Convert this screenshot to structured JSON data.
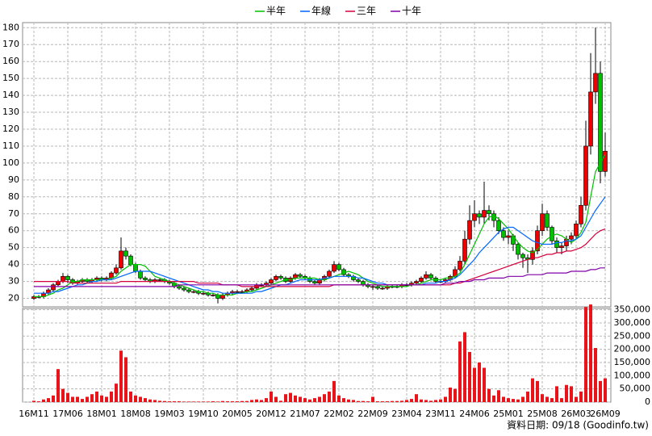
{
  "chart_data": {
    "type": "candlestick",
    "categories": [
      "16M11",
      null,
      null,
      null,
      null,
      null,
      null,
      "17M06",
      null,
      null,
      null,
      null,
      null,
      null,
      "18M01",
      null,
      null,
      null,
      null,
      null,
      null,
      "18M08",
      null,
      null,
      null,
      null,
      null,
      null,
      "19M03",
      null,
      null,
      null,
      null,
      null,
      null,
      "19M10",
      null,
      null,
      null,
      null,
      null,
      null,
      "20M05",
      null,
      null,
      null,
      null,
      null,
      null,
      "20M12",
      null,
      null,
      null,
      null,
      null,
      null,
      "21M07",
      null,
      null,
      null,
      null,
      null,
      null,
      "22M02",
      null,
      null,
      null,
      null,
      null,
      null,
      "22M09",
      null,
      null,
      null,
      null,
      null,
      null,
      "23M04",
      null,
      null,
      null,
      null,
      null,
      null,
      "23M11",
      null,
      null,
      null,
      null,
      null,
      null,
      "24M06",
      null,
      null,
      null,
      null,
      null,
      null,
      "25M01",
      null,
      null,
      null,
      null,
      null,
      null,
      "25M08",
      null,
      null,
      null,
      null,
      null,
      null,
      "26M03",
      null,
      null,
      null,
      null,
      null,
      "26M09"
    ],
    "open": [
      20,
      21,
      21,
      23,
      25,
      28,
      30,
      33,
      31,
      29,
      30,
      31,
      30,
      31,
      32,
      31,
      32,
      35,
      38,
      48,
      45,
      40,
      36,
      32,
      31,
      30,
      31,
      31,
      30,
      29,
      27,
      26,
      25,
      24,
      24,
      23,
      23,
      22,
      22,
      20,
      22,
      23,
      24,
      24,
      24,
      25,
      26,
      28,
      28,
      29,
      31,
      33,
      32,
      30,
      32,
      34,
      33,
      32,
      30,
      29,
      31,
      33,
      36,
      40,
      37,
      34,
      33,
      31,
      30,
      28,
      27,
      27,
      26,
      26,
      27,
      27,
      27,
      28,
      28,
      29,
      30,
      32,
      34,
      32,
      30,
      30,
      31,
      33,
      37,
      42,
      55,
      66,
      70,
      68,
      72,
      70,
      66,
      60,
      56,
      57,
      52,
      46,
      44,
      43,
      48,
      60,
      70,
      62,
      54,
      50,
      51,
      55,
      57,
      64,
      75,
      110,
      142,
      153,
      95
    ],
    "high": [
      22,
      22,
      24,
      26,
      29,
      31,
      35,
      34,
      32,
      31,
      32,
      32,
      32,
      33,
      33,
      33,
      36,
      40,
      56,
      50,
      46,
      41,
      37,
      33,
      32,
      32,
      32,
      32,
      31,
      30,
      28,
      27,
      26,
      25,
      25,
      24,
      24,
      23,
      23,
      23,
      24,
      25,
      25,
      25,
      26,
      27,
      29,
      29,
      30,
      32,
      34,
      34,
      33,
      33,
      35,
      35,
      34,
      33,
      31,
      32,
      34,
      37,
      42,
      41,
      38,
      35,
      34,
      32,
      31,
      29,
      28,
      28,
      27,
      28,
      28,
      28,
      29,
      29,
      30,
      31,
      33,
      36,
      35,
      33,
      31,
      32,
      34,
      39,
      45,
      60,
      75,
      78,
      72,
      89,
      75,
      72,
      68,
      62,
      60,
      58,
      53,
      47,
      46,
      50,
      63,
      76,
      72,
      63,
      56,
      53,
      57,
      59,
      66,
      80,
      125,
      165,
      180,
      160,
      118
    ],
    "low": [
      19,
      20,
      20,
      22,
      24,
      27,
      29,
      29,
      28,
      28,
      29,
      29,
      29,
      30,
      30,
      30,
      31,
      34,
      37,
      43,
      39,
      35,
      31,
      30,
      29,
      29,
      30,
      29,
      28,
      26,
      25,
      24,
      23,
      23,
      22,
      22,
      21,
      21,
      17,
      19,
      21,
      22,
      23,
      23,
      23,
      24,
      25,
      27,
      27,
      28,
      30,
      31,
      29,
      29,
      31,
      32,
      31,
      29,
      28,
      28,
      30,
      32,
      35,
      36,
      33,
      32,
      30,
      29,
      27,
      26,
      25,
      25,
      25,
      25,
      26,
      26,
      26,
      27,
      27,
      28,
      29,
      31,
      31,
      29,
      29,
      29,
      30,
      32,
      36,
      40,
      52,
      62,
      64,
      64,
      66,
      62,
      58,
      54,
      52,
      48,
      43,
      38,
      35,
      40,
      46,
      57,
      60,
      52,
      47,
      46,
      48,
      52,
      55,
      62,
      72,
      105,
      135,
      88,
      92
    ],
    "close": [
      21,
      21,
      23,
      25,
      28,
      30,
      33,
      31,
      29,
      30,
      31,
      30,
      31,
      32,
      31,
      32,
      35,
      38,
      48,
      45,
      40,
      36,
      32,
      31,
      30,
      31,
      31,
      30,
      29,
      27,
      26,
      25,
      24,
      24,
      23,
      23,
      22,
      22,
      20,
      22,
      23,
      24,
      24,
      24,
      25,
      26,
      28,
      28,
      29,
      31,
      33,
      32,
      30,
      32,
      34,
      33,
      32,
      30,
      29,
      31,
      33,
      36,
      40,
      37,
      34,
      33,
      31,
      30,
      28,
      27,
      27,
      26,
      26,
      27,
      27,
      27,
      28,
      28,
      29,
      30,
      32,
      34,
      32,
      30,
      30,
      31,
      33,
      37,
      42,
      55,
      66,
      70,
      68,
      72,
      70,
      66,
      60,
      56,
      57,
      52,
      46,
      44,
      43,
      48,
      60,
      70,
      62,
      54,
      50,
      51,
      55,
      57,
      64,
      75,
      110,
      142,
      153,
      95,
      107
    ],
    "up_color": "#ee0000",
    "down_color": "#00c000",
    "series": [
      {
        "name": "半年",
        "color": "#00c000",
        "values": [
          21,
          21,
          21,
          22,
          23,
          25,
          26,
          28,
          30,
          30,
          31,
          31,
          31,
          31,
          31,
          31,
          32,
          33,
          36,
          38,
          40,
          40,
          40,
          39,
          36,
          33,
          32,
          31,
          30,
          29,
          28,
          27,
          26,
          25,
          24,
          24,
          23,
          23,
          22,
          22,
          22,
          22,
          23,
          23,
          24,
          24,
          25,
          26,
          27,
          28,
          29,
          30,
          31,
          31,
          32,
          32,
          32,
          32,
          32,
          31,
          31,
          32,
          33,
          34,
          35,
          36,
          35,
          34,
          32,
          30,
          29,
          28,
          27,
          27,
          27,
          27,
          27,
          27,
          28,
          28,
          29,
          30,
          31,
          31,
          31,
          32,
          32,
          33,
          35,
          40,
          46,
          52,
          58,
          64,
          68,
          69,
          67,
          64,
          61,
          57,
          53,
          50,
          48,
          47,
          49,
          52,
          55,
          57,
          58,
          57,
          55,
          53,
          55,
          59,
          65,
          80,
          95,
          100,
          105
        ]
      },
      {
        "name": "年線",
        "color": "#0066ff",
        "values": [
          23,
          23,
          23,
          23,
          24,
          24,
          25,
          26,
          27,
          28,
          28,
          29,
          30,
          30,
          31,
          31,
          31,
          32,
          33,
          34,
          35,
          36,
          36,
          36,
          36,
          35,
          34,
          33,
          32,
          31,
          30,
          29,
          28,
          27,
          26,
          25,
          25,
          24,
          24,
          23,
          23,
          23,
          23,
          23,
          23,
          23,
          24,
          24,
          25,
          26,
          27,
          28,
          28,
          29,
          30,
          31,
          31,
          31,
          31,
          31,
          32,
          32,
          33,
          33,
          33,
          33,
          33,
          32,
          32,
          31,
          30,
          29,
          29,
          28,
          28,
          28,
          28,
          28,
          28,
          28,
          28,
          29,
          29,
          29,
          30,
          30,
          31,
          32,
          34,
          37,
          40,
          43,
          47,
          50,
          53,
          56,
          59,
          61,
          62,
          62,
          60,
          58,
          56,
          54,
          53,
          52,
          52,
          52,
          53,
          53,
          54,
          54,
          55,
          57,
          62,
          67,
          72,
          76,
          80
        ]
      },
      {
        "name": "三年",
        "color": "#d4003c",
        "values": [
          30,
          30,
          30,
          30,
          30,
          30,
          30,
          30,
          29,
          29,
          29,
          29,
          29,
          29,
          29,
          29,
          29,
          29,
          30,
          30,
          30,
          30,
          30,
          30,
          30,
          30,
          30,
          30,
          30,
          30,
          30,
          30,
          30,
          30,
          29,
          29,
          29,
          29,
          29,
          28,
          28,
          28,
          28,
          27,
          27,
          27,
          27,
          27,
          27,
          27,
          27,
          27,
          27,
          27,
          27,
          27,
          27,
          27,
          27,
          27,
          27,
          27,
          28,
          28,
          28,
          28,
          28,
          28,
          28,
          28,
          28,
          28,
          28,
          28,
          28,
          28,
          28,
          28,
          28,
          28,
          28,
          28,
          28,
          28,
          28,
          28,
          28,
          29,
          29,
          30,
          31,
          32,
          33,
          34,
          35,
          36,
          37,
          38,
          39,
          40,
          41,
          42,
          43,
          44,
          44,
          45,
          46,
          46,
          47,
          47,
          48,
          48,
          49,
          50,
          52,
          55,
          58,
          60,
          61
        ]
      },
      {
        "name": "十年",
        "color": "#8000a8",
        "values": [
          27,
          27,
          27,
          27,
          27,
          27,
          27,
          27,
          27,
          27,
          27,
          27,
          27,
          27,
          27,
          27,
          27,
          27,
          27,
          27,
          27,
          27,
          27,
          27,
          27,
          27,
          27,
          27,
          27,
          27,
          28,
          28,
          28,
          28,
          28,
          28,
          28,
          28,
          28,
          28,
          28,
          28,
          28,
          28,
          28,
          28,
          28,
          28,
          28,
          28,
          28,
          28,
          28,
          28,
          28,
          28,
          28,
          28,
          28,
          28,
          28,
          28,
          28,
          28,
          28,
          28,
          28,
          28,
          28,
          28,
          28,
          28,
          28,
          28,
          28,
          28,
          28,
          28,
          28,
          28,
          28,
          28,
          28,
          28,
          28,
          29,
          29,
          29,
          30,
          30,
          30,
          31,
          31,
          31,
          32,
          32,
          32,
          32,
          33,
          33,
          33,
          33,
          34,
          34,
          34,
          34,
          35,
          35,
          35,
          35,
          35,
          36,
          36,
          36,
          36,
          37,
          37,
          38,
          38
        ]
      }
    ],
    "ylim": [
      15,
      183
    ],
    "yticks": [
      20,
      30,
      40,
      50,
      60,
      70,
      80,
      90,
      100,
      110,
      120,
      130,
      140,
      150,
      160,
      170,
      180
    ],
    "grid": true,
    "volume": {
      "color": "#e8141a",
      "values": [
        5000,
        3000,
        10000,
        15000,
        25000,
        125000,
        50000,
        35000,
        20000,
        20000,
        12000,
        20000,
        30000,
        40000,
        25000,
        20000,
        40000,
        70000,
        195000,
        170000,
        40000,
        25000,
        20000,
        15000,
        10000,
        8000,
        5000,
        4000,
        3000,
        3000,
        3000,
        2000,
        2000,
        2000,
        2000,
        2000,
        2000,
        3000,
        2000,
        4000,
        3000,
        3000,
        3000,
        4000,
        4000,
        8000,
        10000,
        8000,
        15000,
        40000,
        20000,
        5000,
        30000,
        35000,
        25000,
        20000,
        15000,
        10000,
        15000,
        20000,
        30000,
        40000,
        80000,
        25000,
        15000,
        10000,
        8000,
        4000,
        4000,
        3000,
        20000,
        3000,
        3000,
        3000,
        4000,
        4000,
        5000,
        8000,
        12000,
        30000,
        10000,
        8000,
        5000,
        8000,
        10000,
        20000,
        55000,
        50000,
        230000,
        265000,
        190000,
        130000,
        150000,
        130000,
        50000,
        25000,
        45000,
        20000,
        15000,
        12000,
        10000,
        20000,
        40000,
        90000,
        80000,
        30000,
        20000,
        15000,
        60000,
        15000,
        65000,
        60000,
        20000,
        40000,
        360000,
        370000,
        205000,
        80000,
        90000
      ],
      "ylim": [
        0,
        355000
      ],
      "yticks": [
        0,
        {
          "value": 50000,
          "label": "50,000"
        },
        {
          "value": 100000,
          "label": "100,000"
        },
        {
          "value": 150000,
          "label": "150,000"
        },
        {
          "value": 200000,
          "label": "200,000"
        },
        {
          "value": 250000,
          "label": "250,000"
        },
        {
          "value": 300000,
          "label": "300,000"
        },
        {
          "value": 350000,
          "label": "350,000"
        }
      ]
    },
    "source": "資料日期: 09/18 (Goodinfo.tw)"
  }
}
